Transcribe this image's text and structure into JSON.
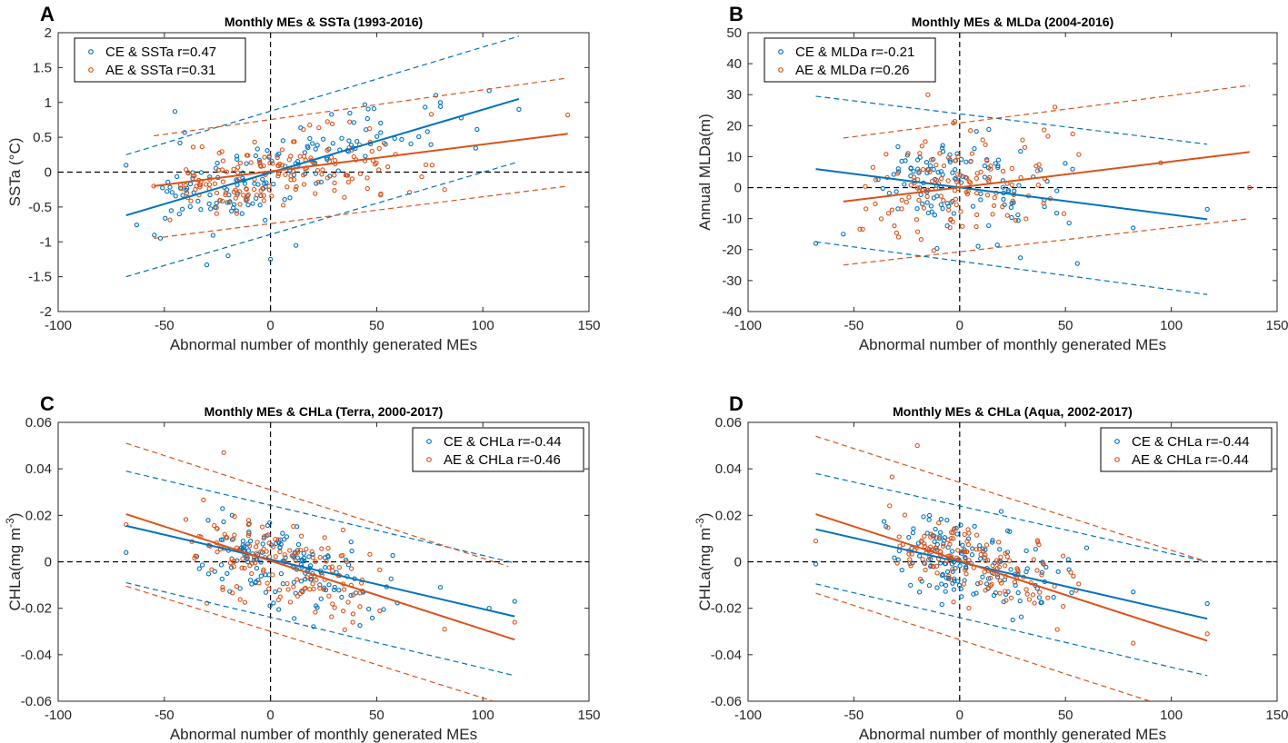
{
  "colors": {
    "ce": "#0072BD",
    "ae": "#D95319",
    "axis": "#262626",
    "zero": "#000000"
  },
  "chart_data": [
    {
      "type": "scatter",
      "panel_letter": "A",
      "title": "Monthly MEs & SSTa (1993-2016)",
      "xlabel": "Abnormal number of monthly generated MEs",
      "ylabel_main": "SSTa (°C)",
      "ylabel_sup": "",
      "ylabel_tail": "",
      "xlim": [
        -100,
        150
      ],
      "ylim": [
        -2,
        2
      ],
      "xticks": [
        -100,
        -50,
        0,
        50,
        100,
        150
      ],
      "xtick_labels": [
        "-100",
        "-50",
        "0",
        "50",
        "100",
        "150"
      ],
      "yticks": [
        -2,
        -1.5,
        -1,
        -0.5,
        0,
        0.5,
        1,
        1.5,
        2
      ],
      "ytick_labels": [
        "-2",
        "-1.5",
        "-1",
        "-0.5",
        "0",
        "0.5",
        "1",
        "1.5",
        "2"
      ],
      "legend_position": "top-left",
      "series": [
        {
          "key": "ce",
          "name": "CE & SSTa  r=0.47",
          "fit": [
            [
              -68,
              -0.62
            ],
            [
              117,
              1.05
            ]
          ],
          "upper": [
            [
              -68,
              0.25
            ],
            [
              117,
              1.95
            ]
          ],
          "lower": [
            [
              -68,
              -1.5
            ],
            [
              117,
              0.15
            ]
          ],
          "gen": {
            "seed": 11,
            "n": 150,
            "xmin": -65,
            "xmax": 110,
            "xmode": -15,
            "slope": 0.009,
            "intercept": 0.0,
            "noise": 0.35
          },
          "points": [
            [
              -68,
              0.1
            ],
            [
              -45,
              0.87
            ],
            [
              -30,
              -1.33
            ],
            [
              0,
              -1.25
            ],
            [
              103,
              1.17
            ],
            [
              117,
              0.9
            ],
            [
              80,
              1.0
            ],
            [
              12,
              -1.05
            ],
            [
              -20,
              -1.2
            ]
          ]
        },
        {
          "key": "ae",
          "name": "AE & SSTa  r=0.31",
          "fit": [
            [
              -55,
              -0.2
            ],
            [
              140,
              0.55
            ]
          ],
          "upper": [
            [
              -55,
              0.52
            ],
            [
              140,
              1.35
            ]
          ],
          "lower": [
            [
              -55,
              -0.95
            ],
            [
              140,
              -0.2
            ]
          ],
          "gen": {
            "seed": 23,
            "n": 170,
            "xmin": -55,
            "xmax": 80,
            "xmode": -10,
            "slope": 0.0038,
            "intercept": 0.0,
            "noise": 0.32
          },
          "points": [
            [
              140,
              0.82
            ],
            [
              -55,
              -0.2
            ],
            [
              82,
              -0.25
            ]
          ]
        }
      ]
    },
    {
      "type": "scatter",
      "panel_letter": "B",
      "title": "Monthly MEs & MLDa (2004-2016)",
      "xlabel": "Abnormal number of monthly generated MEs",
      "ylabel_main": "Annual MLDa(m)",
      "ylabel_sup": "",
      "ylabel_tail": "",
      "xlim": [
        -100,
        150
      ],
      "ylim": [
        -40,
        50
      ],
      "xticks": [
        -100,
        -50,
        0,
        50,
        100,
        150
      ],
      "xtick_labels": [
        "-100",
        "-50",
        "0",
        "50",
        "100",
        "150"
      ],
      "yticks": [
        -40,
        -30,
        -20,
        -10,
        0,
        10,
        20,
        30,
        40,
        50
      ],
      "ytick_labels": [
        "-40",
        "-30",
        "-20",
        "-10",
        "0",
        "10",
        "20",
        "30",
        "40",
        "50"
      ],
      "legend_position": "top-left",
      "series": [
        {
          "key": "ce",
          "name": "CE & MLDa  r=-0.21",
          "fit": [
            [
              -68,
              6
            ],
            [
              117,
              -10.2
            ]
          ],
          "upper": [
            [
              -68,
              29.5
            ],
            [
              117,
              14
            ]
          ],
          "lower": [
            [
              -68,
              -17.5
            ],
            [
              117,
              -34.5
            ]
          ],
          "gen": {
            "seed": 37,
            "n": 120,
            "xmin": -45,
            "xmax": 60,
            "xmode": -10,
            "slope": -0.09,
            "intercept": 0.0,
            "noise": 11
          },
          "points": [
            [
              -68,
              -18
            ],
            [
              117,
              -7
            ],
            [
              82,
              -13
            ],
            [
              -55,
              -15
            ]
          ]
        },
        {
          "key": "ae",
          "name": "AE & MLDa  r=0.26",
          "fit": [
            [
              -55,
              -4.5
            ],
            [
              137,
              11.5
            ]
          ],
          "upper": [
            [
              -55,
              16
            ],
            [
              137,
              33
            ]
          ],
          "lower": [
            [
              -55,
              -25
            ],
            [
              137,
              -10
            ]
          ],
          "gen": {
            "seed": 41,
            "n": 130,
            "xmin": -55,
            "xmax": 60,
            "xmode": -10,
            "slope": 0.08,
            "intercept": 0.0,
            "noise": 11
          },
          "points": [
            [
              137,
              0
            ],
            [
              95,
              8
            ],
            [
              -15,
              30
            ],
            [
              45,
              26
            ]
          ]
        }
      ]
    },
    {
      "type": "scatter",
      "panel_letter": "C",
      "title": "Monthly MEs & CHLa (Terra, 2000-2017)",
      "xlabel": "Abnormal number of monthly generated MEs",
      "ylabel_main": "CHLa(mg m",
      "ylabel_sup": "-3",
      "ylabel_tail": ")",
      "xlim": [
        -100,
        150
      ],
      "ylim": [
        -0.06,
        0.06
      ],
      "xticks": [
        -100,
        -50,
        0,
        50,
        100,
        150
      ],
      "xtick_labels": [
        "-100",
        "-50",
        "0",
        "50",
        "100",
        "150"
      ],
      "yticks": [
        -0.06,
        -0.04,
        -0.02,
        0,
        0.02,
        0.04,
        0.06
      ],
      "ytick_labels": [
        "-0.06",
        "-0.04",
        "-0.02",
        "0",
        "0.02",
        "0.04",
        "0.06"
      ],
      "legend_position": "top-right",
      "series": [
        {
          "key": "ce",
          "name": "CE & CHLa  r=-0.44",
          "fit": [
            [
              -68,
              0.0155
            ],
            [
              115,
              -0.0235
            ]
          ],
          "upper": [
            [
              -68,
              0.039
            ],
            [
              115,
              -0.0005
            ]
          ],
          "lower": [
            [
              -68,
              -0.009
            ],
            [
              115,
              -0.049
            ]
          ],
          "gen": {
            "seed": 53,
            "n": 150,
            "xmin": -40,
            "xmax": 60,
            "xmode": -5,
            "slope": -0.00022,
            "intercept": 0.0,
            "noise": 0.011
          },
          "points": [
            [
              -68,
              0.004
            ],
            [
              115,
              -0.017
            ],
            [
              103,
              -0.02
            ],
            [
              80,
              -0.011
            ]
          ]
        },
        {
          "key": "ae",
          "name": "AE & CHLa  r=-0.46",
          "fit": [
            [
              -68,
              0.0205
            ],
            [
              115,
              -0.0335
            ]
          ],
          "upper": [
            [
              -68,
              0.051
            ],
            [
              112,
              -0.002
            ]
          ],
          "lower": [
            [
              -68,
              -0.0105
            ],
            [
              105,
              -0.06
            ]
          ],
          "gen": {
            "seed": 67,
            "n": 150,
            "xmin": -40,
            "xmax": 60,
            "xmode": -5,
            "slope": -0.00028,
            "intercept": 0.0,
            "noise": 0.012
          },
          "points": [
            [
              -68,
              0.016
            ],
            [
              115,
              -0.026
            ],
            [
              -22,
              0.047
            ],
            [
              82,
              -0.029
            ]
          ]
        }
      ]
    },
    {
      "type": "scatter",
      "panel_letter": "D",
      "title": "Monthly MEs & CHLa (Aqua, 2002-2017)",
      "xlabel": "Abnormal number of monthly generated MEs",
      "ylabel_main": "CHLa(mg m",
      "ylabel_sup": "-3",
      "ylabel_tail": ")",
      "xlim": [
        -100,
        150
      ],
      "ylim": [
        -0.06,
        0.06
      ],
      "xticks": [
        -100,
        -50,
        0,
        50,
        100,
        150
      ],
      "xtick_labels": [
        "-100",
        "-50",
        "0",
        "50",
        "100",
        "150"
      ],
      "yticks": [
        -0.06,
        -0.04,
        -0.02,
        0,
        0.02,
        0.04,
        0.06
      ],
      "ytick_labels": [
        "-0.06",
        "-0.04",
        "-0.02",
        "0",
        "0.02",
        "0.04",
        "0.06"
      ],
      "legend_position": "top-right",
      "series": [
        {
          "key": "ce",
          "name": "CE & CHLa  r=-0.44",
          "fit": [
            [
              -68,
              0.014
            ],
            [
              117,
              -0.0245
            ]
          ],
          "upper": [
            [
              -68,
              0.038
            ],
            [
              117,
              0.0
            ]
          ],
          "lower": [
            [
              -68,
              -0.0095
            ],
            [
              117,
              -0.049
            ]
          ],
          "gen": {
            "seed": 79,
            "n": 150,
            "xmin": -40,
            "xmax": 60,
            "xmode": -5,
            "slope": -0.0002,
            "intercept": 0.0,
            "noise": 0.011
          },
          "points": [
            [
              -68,
              -0.001
            ],
            [
              117,
              -0.018
            ],
            [
              82,
              -0.013
            ],
            [
              60,
              0.006
            ]
          ]
        },
        {
          "key": "ae",
          "name": "AE & CHLa  r=-0.44",
          "fit": [
            [
              -68,
              0.0205
            ],
            [
              117,
              -0.034
            ]
          ],
          "upper": [
            [
              -68,
              0.054
            ],
            [
              117,
              0.0
            ]
          ],
          "lower": [
            [
              -68,
              -0.0135
            ],
            [
              90,
              -0.06
            ]
          ],
          "gen": {
            "seed": 97,
            "n": 150,
            "xmin": -40,
            "xmax": 60,
            "xmode": -5,
            "slope": -0.00028,
            "intercept": 0.0,
            "noise": 0.012
          },
          "points": [
            [
              -68,
              0.009
            ],
            [
              117,
              -0.031
            ],
            [
              -20,
              0.05
            ],
            [
              82,
              -0.035
            ]
          ]
        }
      ]
    }
  ]
}
